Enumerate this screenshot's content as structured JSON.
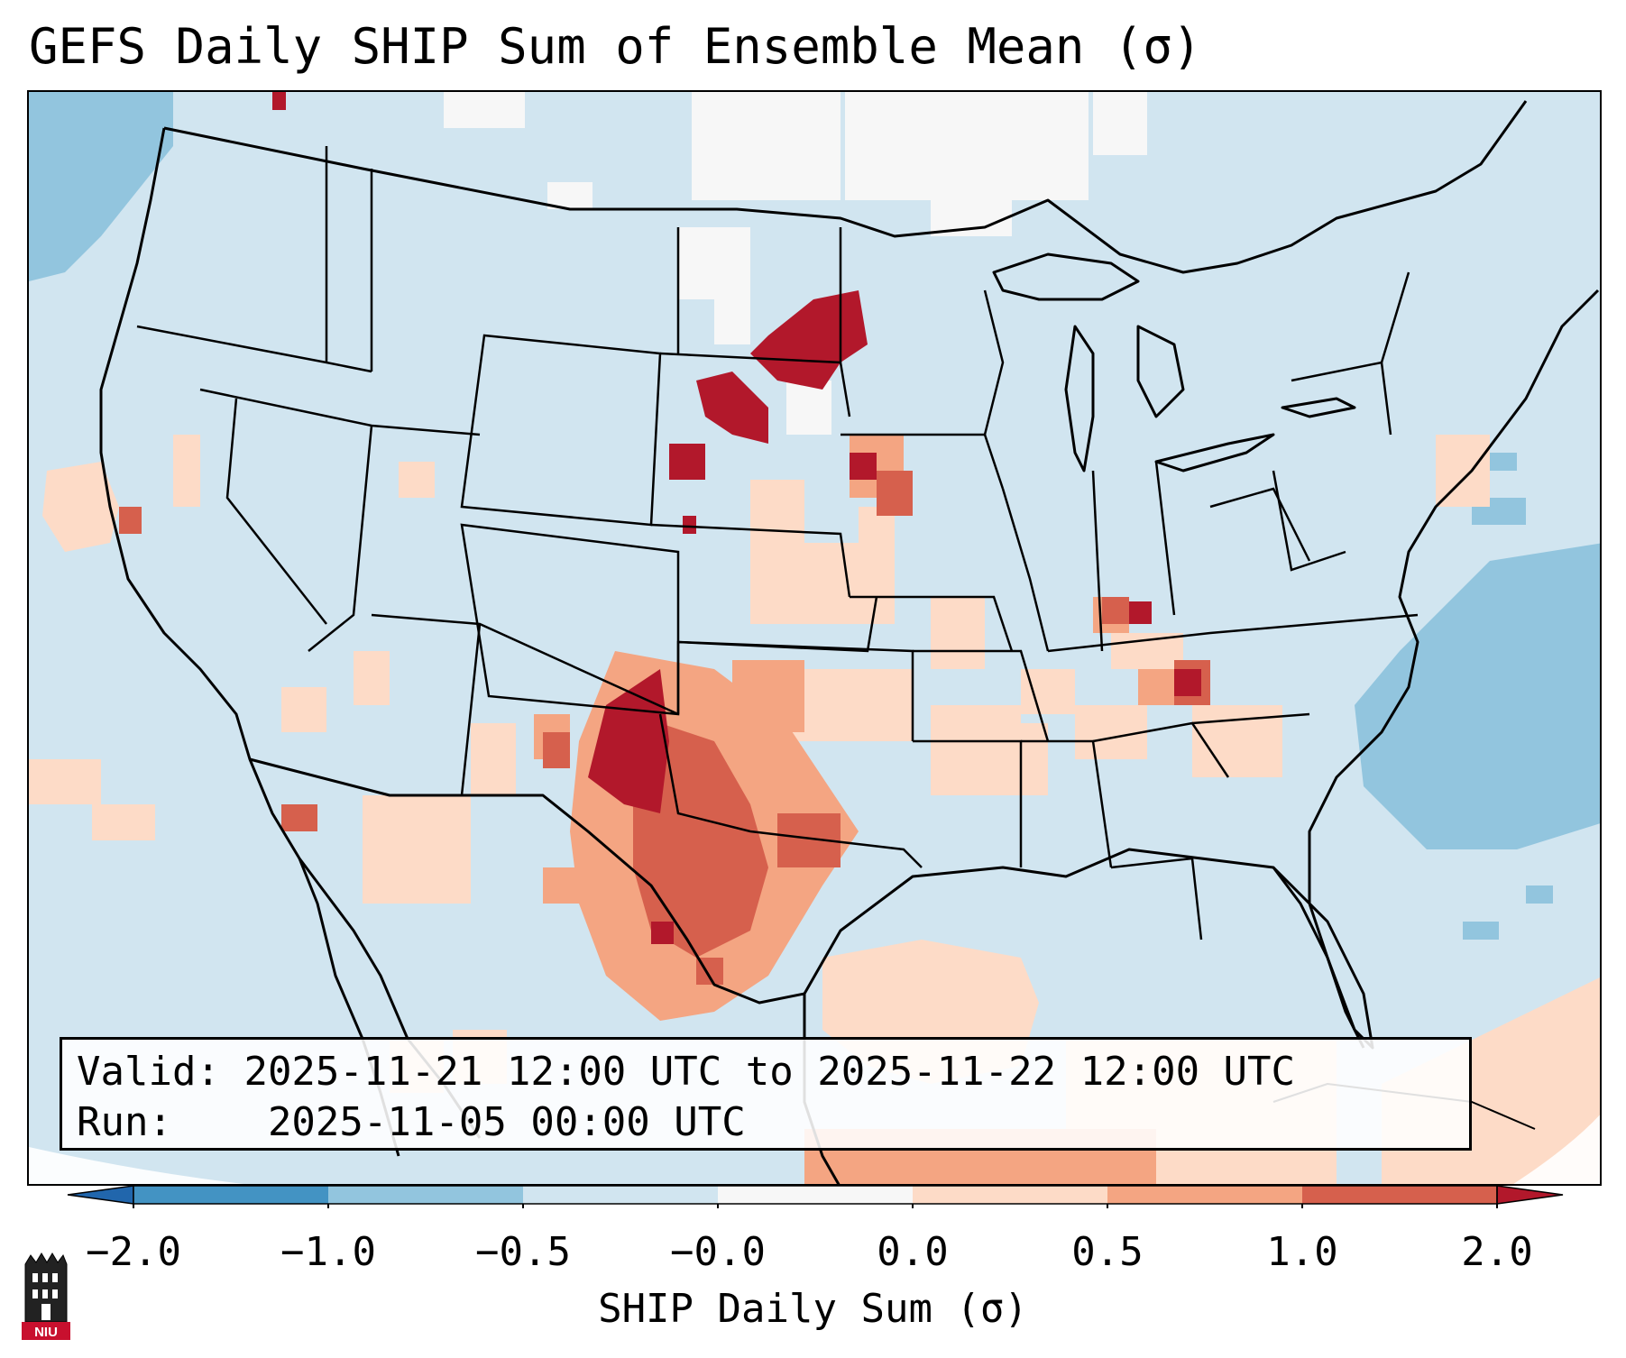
{
  "title": "GEFS Daily SHIP Sum of Ensemble Mean (σ)",
  "info": {
    "valid_label": "Valid:",
    "valid_value": "2025-11-21 12:00 UTC to 2025-11-22 12:00 UTC",
    "run_label": "Run:",
    "run_value": "2025-11-05 00:00 UTC"
  },
  "colorbar": {
    "label": "SHIP Daily Sum (σ)",
    "ticks": [
      "−2.0",
      "−1.0",
      "−0.5",
      "−0.0",
      "0.0",
      "0.5",
      "1.0",
      "2.0"
    ],
    "colors": [
      "#4393c3",
      "#92c5de",
      "#d1e5f0",
      "#f7f7f7",
      "#fddbc7",
      "#f4a582",
      "#d6604d"
    ],
    "extend_low_color": "#2166ac",
    "extend_high_color": "#b2182b"
  },
  "logo": {
    "text": "NIU",
    "icon": "university-seal-icon"
  },
  "map": {
    "region": "Contiguous United States, southern Canada, northern Mexico",
    "background_color": "#d1e5f0",
    "features": [
      "state-boundaries",
      "coastlines",
      "country-borders"
    ]
  }
}
